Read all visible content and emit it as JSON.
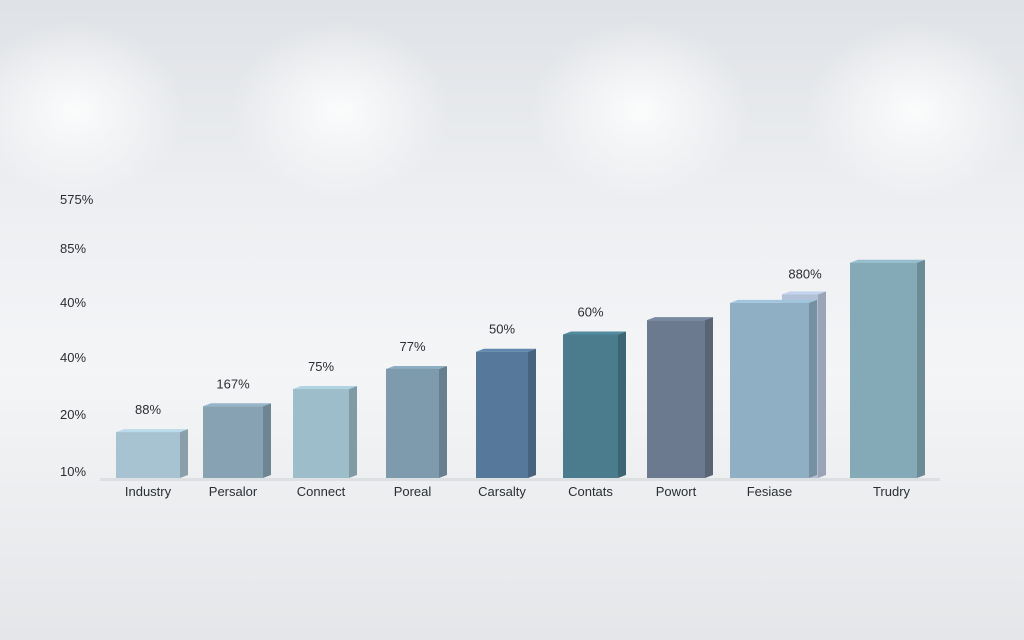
{
  "chart_data": {
    "type": "bar",
    "title": "",
    "xlabel": "",
    "ylabel": "",
    "yticks": [
      "575%",
      "85%",
      "40%",
      "40%",
      "20%",
      "10%"
    ],
    "categories": [
      "Industry",
      "Persalor",
      "Connect",
      "Poreal",
      "Carsalty",
      "Contats",
      "Powort",
      "Fesiase",
      "Trudry"
    ],
    "values": [
      16,
      25,
      31,
      38,
      44,
      50,
      55,
      61,
      75
    ],
    "data_labels": [
      "88%",
      "167%",
      "75%",
      "77%",
      "50%",
      "60%",
      "",
      "880%",
      ""
    ],
    "secondary_bar": {
      "category": "Fesiase",
      "value": 64
    },
    "colors": [
      "#a7c3d1",
      "#86a2b3",
      "#9dbdca",
      "#7d9bad",
      "#56799b",
      "#4a7c8d",
      "#6c7a8f",
      "#8fb0c4",
      "#84a9b7"
    ],
    "grid": false,
    "legend": "none"
  }
}
